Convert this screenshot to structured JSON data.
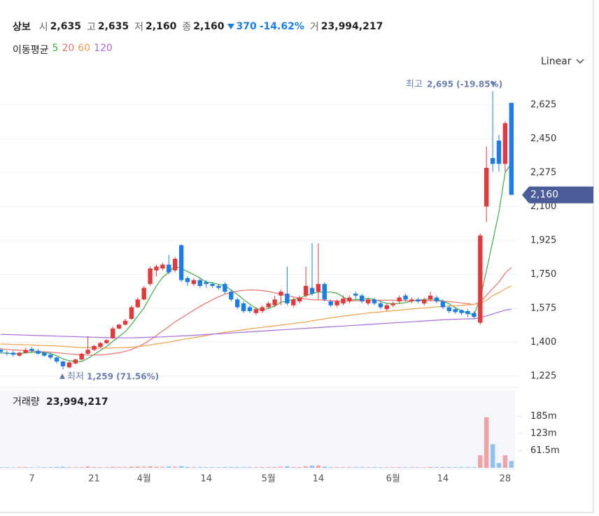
{
  "header": {
    "name": "상보",
    "items": [
      {
        "label": "시",
        "value": "2,635"
      },
      {
        "label": "고",
        "value": "2,635"
      },
      {
        "label": "저",
        "value": "2,160"
      },
      {
        "label": "종",
        "value": "2,160"
      }
    ],
    "change": "370",
    "change_pct": "-14.62%",
    "volume_label": "거",
    "volume_value": "23,994,217",
    "scale_mode": "Linear"
  },
  "chart_data": {
    "type": "candlestick",
    "ma_title": "이동평균",
    "up_color": "#e5383b",
    "down_color": "#1b7de8",
    "categories": [
      null,
      null,
      null,
      null,
      null,
      "7",
      null,
      null,
      null,
      null,
      null,
      null,
      null,
      null,
      null,
      "21",
      null,
      null,
      null,
      null,
      null,
      null,
      null,
      "4월",
      null,
      null,
      null,
      null,
      null,
      null,
      null,
      null,
      null,
      "14",
      null,
      null,
      null,
      null,
      null,
      null,
      null,
      null,
      null,
      "5월",
      null,
      null,
      null,
      null,
      null,
      null,
      null,
      "14",
      null,
      null,
      null,
      null,
      null,
      null,
      null,
      null,
      null,
      null,
      null,
      "6월",
      null,
      null,
      null,
      null,
      null,
      null,
      null,
      "14",
      null,
      null,
      null,
      null,
      null,
      null,
      null,
      null,
      null,
      "28",
      null
    ],
    "open": [
      1360,
      1345,
      1345,
      1330,
      1345,
      1365,
      1355,
      1345,
      1335,
      1320,
      1300,
      1270,
      1290,
      1310,
      1340,
      1360,
      1375,
      1395,
      1420,
      1470,
      1490,
      1520,
      1580,
      1620,
      1700,
      1770,
      1780,
      1800,
      1770,
      1900,
      1730,
      1700,
      1720,
      1710,
      1700,
      1690,
      1700,
      1660,
      1620,
      1600,
      1580,
      1550,
      1560,
      1580,
      1590,
      1640,
      1650,
      1590,
      1610,
      1640,
      1680,
      1660,
      1700,
      1610,
      1590,
      1600,
      1610,
      1650,
      1640,
      1600,
      1620,
      1600,
      1570,
      1590,
      1610,
      1640,
      1610,
      1620,
      1600,
      1620,
      1630,
      1610,
      1580,
      1570,
      1565,
      1560,
      1550,
      1500,
      2100,
      2350,
      2440,
      2320,
      2635
    ],
    "high": [
      1370,
      1355,
      1355,
      1350,
      1370,
      1375,
      1365,
      1350,
      1345,
      1325,
      1305,
      1300,
      1315,
      1345,
      1430,
      1385,
      1400,
      1415,
      1480,
      1495,
      1520,
      1590,
      1630,
      1690,
      1790,
      1800,
      1810,
      1850,
      1840,
      1905,
      1740,
      1730,
      1730,
      1720,
      1710,
      1700,
      1710,
      1670,
      1630,
      1610,
      1590,
      1580,
      1590,
      1610,
      1640,
      1670,
      1790,
      1630,
      1640,
      1790,
      1910,
      1910,
      1710,
      1620,
      1620,
      1640,
      1640,
      1660,
      1650,
      1630,
      1630,
      1610,
      1600,
      1610,
      1640,
      1650,
      1630,
      1630,
      1630,
      1660,
      1640,
      1620,
      1590,
      1580,
      1570,
      1570,
      1560,
      1960,
      2410,
      2695,
      2470,
      2540,
      2635
    ],
    "low": [
      1340,
      1330,
      1325,
      1325,
      1340,
      1345,
      1335,
      1325,
      1310,
      1290,
      1259,
      1265,
      1285,
      1305,
      1335,
      1355,
      1370,
      1390,
      1415,
      1465,
      1485,
      1515,
      1575,
      1615,
      1690,
      1740,
      1770,
      1750,
      1760,
      1710,
      1690,
      1690,
      1680,
      1680,
      1680,
      1670,
      1650,
      1610,
      1570,
      1550,
      1550,
      1540,
      1550,
      1570,
      1580,
      1590,
      1590,
      1580,
      1600,
      1630,
      1640,
      1620,
      1610,
      1580,
      1580,
      1590,
      1600,
      1620,
      1600,
      1590,
      1590,
      1570,
      1560,
      1580,
      1600,
      1610,
      1600,
      1600,
      1590,
      1610,
      1600,
      1570,
      1550,
      1545,
      1540,
      1530,
      1520,
      1490,
      2020,
      2280,
      2280,
      2280,
      2160
    ],
    "close": [
      1350,
      1340,
      1335,
      1345,
      1360,
      1355,
      1340,
      1330,
      1320,
      1300,
      1275,
      1295,
      1310,
      1340,
      1360,
      1380,
      1395,
      1410,
      1470,
      1490,
      1510,
      1580,
      1620,
      1680,
      1780,
      1790,
      1800,
      1760,
      1830,
      1720,
      1710,
      1720,
      1690,
      1700,
      1690,
      1680,
      1660,
      1620,
      1580,
      1560,
      1560,
      1570,
      1580,
      1600,
      1620,
      1660,
      1600,
      1620,
      1630,
      1690,
      1650,
      1700,
      1620,
      1590,
      1610,
      1625,
      1630,
      1640,
      1610,
      1620,
      1600,
      1580,
      1590,
      1600,
      1630,
      1620,
      1620,
      1610,
      1620,
      1640,
      1610,
      1580,
      1560,
      1555,
      1550,
      1545,
      1530,
      1950,
      2300,
      2320,
      2320,
      2530,
      2160
    ],
    "series": [
      {
        "name": "5",
        "color": "#3cb043",
        "values": [
          1345,
          1343,
          1340,
          1340,
          1345,
          1347,
          1347,
          1346,
          1341,
          1329,
          1313,
          1304,
          1300,
          1300,
          1316,
          1336,
          1357,
          1377,
          1403,
          1429,
          1453,
          1492,
          1534,
          1576,
          1634,
          1690,
          1734,
          1762,
          1792,
          1780,
          1764,
          1748,
          1730,
          1710,
          1706,
          1698,
          1690,
          1670,
          1646,
          1620,
          1596,
          1574,
          1566,
          1574,
          1586,
          1606,
          1612,
          1620,
          1626,
          1640,
          1650,
          1658,
          1658,
          1658,
          1652,
          1633,
          1615,
          1619,
          1621,
          1625,
          1620,
          1610,
          1600,
          1598,
          1600,
          1604,
          1612,
          1616,
          1620,
          1622,
          1620,
          1612,
          1598,
          1577,
          1561,
          1550,
          1540,
          1626,
          1770,
          1920,
          2071,
          2275,
          2323
        ]
      },
      {
        "name": "20",
        "color": "#ef6f6c",
        "values": [
          1365,
          1362,
          1360,
          1358,
          1356,
          1354,
          1352,
          1350,
          1348,
          1345,
          1342,
          1339,
          1336,
          1334,
          1333,
          1333,
          1334,
          1336,
          1340,
          1345,
          1352,
          1362,
          1375,
          1391,
          1412,
          1434,
          1458,
          1480,
          1505,
          1524,
          1544,
          1565,
          1584,
          1602,
          1619,
          1634,
          1647,
          1657,
          1663,
          1667,
          1669,
          1668,
          1666,
          1662,
          1654,
          1648,
          1640,
          1633,
          1627,
          1622,
          1619,
          1618,
          1617,
          1614,
          1612,
          1612,
          1613,
          1614,
          1614,
          1614,
          1615,
          1616,
          1616,
          1616,
          1615,
          1614,
          1613,
          1614,
          1614,
          1614,
          1613,
          1611,
          1609,
          1606,
          1602,
          1598,
          1593,
          1609,
          1641,
          1676,
          1710,
          1756,
          1785
        ]
      },
      {
        "name": "60",
        "color": "#f0a04b",
        "values": [
          1390,
          1389,
          1388,
          1387,
          1386,
          1385,
          1383,
          1382,
          1381,
          1380,
          1378,
          1376,
          1374,
          1372,
          1371,
          1370,
          1369,
          1369,
          1370,
          1371,
          1372,
          1374,
          1377,
          1380,
          1385,
          1390,
          1395,
          1400,
          1406,
          1412,
          1418,
          1423,
          1428,
          1434,
          1440,
          1445,
          1450,
          1455,
          1460,
          1464,
          1468,
          1472,
          1476,
          1480,
          1484,
          1488,
          1492,
          1496,
          1500,
          1504,
          1510,
          1515,
          1520,
          1525,
          1530,
          1534,
          1538,
          1542,
          1546,
          1550,
          1553,
          1556,
          1559,
          1562,
          1565,
          1568,
          1571,
          1574,
          1576,
          1579,
          1582,
          1584,
          1586,
          1588,
          1590,
          1592,
          1594,
          1602,
          1615,
          1640,
          1655,
          1675,
          1690
        ]
      },
      {
        "name": "120",
        "color": "#a66be0",
        "values": [
          1440,
          1439,
          1438,
          1437,
          1436,
          1435,
          1434,
          1433,
          1432,
          1431,
          1430,
          1429,
          1428,
          1427,
          1426,
          1425,
          1424,
          1423,
          1422,
          1422,
          1422,
          1422,
          1423,
          1424,
          1425,
          1426,
          1427,
          1429,
          1430,
          1432,
          1433,
          1435,
          1437,
          1439,
          1441,
          1443,
          1445,
          1447,
          1449,
          1451,
          1453,
          1455,
          1457,
          1459,
          1461,
          1463,
          1465,
          1467,
          1469,
          1471,
          1473,
          1475,
          1477,
          1479,
          1481,
          1483,
          1485,
          1487,
          1489,
          1491,
          1493,
          1495,
          1497,
          1499,
          1501,
          1503,
          1505,
          1507,
          1509,
          1511,
          1513,
          1515,
          1517,
          1518,
          1519,
          1520,
          1520,
          1525,
          1535,
          1545,
          1555,
          1565,
          1570
        ]
      }
    ],
    "ylim": [
      1170,
      2805
    ],
    "yticks": [
      {
        "value": 1225,
        "label": "1,225"
      },
      {
        "value": 1400,
        "label": "1,400"
      },
      {
        "value": 1575,
        "label": "1,575"
      },
      {
        "value": 1750,
        "label": "1,750"
      },
      {
        "value": 1925,
        "label": "1,925"
      },
      {
        "value": 2100,
        "label": "2,100"
      },
      {
        "value": 2275,
        "label": "2,275"
      },
      {
        "value": 2450,
        "label": "2,450"
      },
      {
        "value": 2625,
        "label": "2,625"
      }
    ],
    "grid": true,
    "last_price_label": "2,160",
    "annotations": {
      "high": {
        "label": "최고",
        "text": "2,695 (-19.85%)"
      },
      "low": {
        "label": "최저",
        "text": "1,259 (71.56%)"
      }
    },
    "volume": {
      "title": "거래량",
      "last": "23,994,217",
      "up_color": "#f2a2a4",
      "down_color": "#8fc2f4",
      "values": [
        2100000,
        1800000,
        1500000,
        2300000,
        2600000,
        1700000,
        1400000,
        1900000,
        2200000,
        3000000,
        3500000,
        2400000,
        1900000,
        2100000,
        4200000,
        2600000,
        2200000,
        2000000,
        3400000,
        3100000,
        2800000,
        3600000,
        4100000,
        3900000,
        5200000,
        3800000,
        3300000,
        4600000,
        3500000,
        5800000,
        2900000,
        2500000,
        2300000,
        2100000,
        2000000,
        1900000,
        2400000,
        2800000,
        2600000,
        2300000,
        2100000,
        2000000,
        2200000,
        2500000,
        2400000,
        3600000,
        5100000,
        2700000,
        2600000,
        4800000,
        7600000,
        8200000,
        3900000,
        2400000,
        2100000,
        2000000,
        1900000,
        2300000,
        2200000,
        2000000,
        1900000,
        1800000,
        1700000,
        1800000,
        2100000,
        2000000,
        1900000,
        1800000,
        1900000,
        2600000,
        2300000,
        2500000,
        2200000,
        2000000,
        2100000,
        2400000,
        2300000,
        45000000,
        182000000,
        85000000,
        17000000,
        45000000,
        23994217
      ],
      "ylim": [
        0,
        280000000
      ],
      "yticks": [
        {
          "value": 61500000,
          "label": "61.5m"
        },
        {
          "value": 123000000,
          "label": "123m"
        },
        {
          "value": 185000000,
          "label": "185m"
        }
      ]
    }
  }
}
